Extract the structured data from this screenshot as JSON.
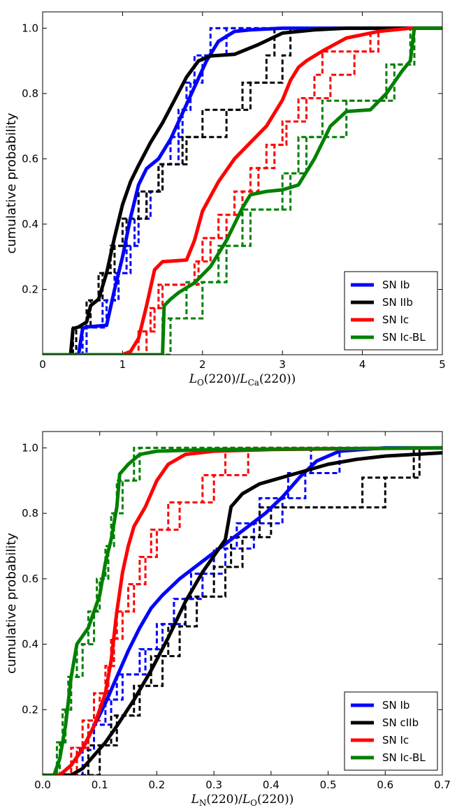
{
  "chart_data": [
    {
      "type": "line",
      "title": "",
      "xlabel": "L_O(220)/L_Ca(220))",
      "ylabel": "cumulative probability",
      "xlim": [
        0,
        5
      ],
      "ylim": [
        0,
        1.05
      ],
      "xticks": [
        0,
        1,
        2,
        3,
        4,
        5
      ],
      "xtick_labels": [
        "0",
        "1",
        "2",
        "3",
        "4",
        "5"
      ],
      "yticks": [
        0.2,
        0.4,
        0.6,
        0.8,
        1.0
      ],
      "ytick_labels": [
        "0.2",
        "0.4",
        "0.6",
        "0.8",
        "1.0"
      ],
      "legend_loc": "lower-right",
      "series": [
        {
          "name": "SN Ib",
          "color": "#0000ff",
          "smooth": [
            [
              0,
              0
            ],
            [
              0.45,
              0
            ],
            [
              0.5,
              0.08
            ],
            [
              0.55,
              0.085
            ],
            [
              0.8,
              0.09
            ],
            [
              0.9,
              0.2
            ],
            [
              1.0,
              0.3
            ],
            [
              1.1,
              0.42
            ],
            [
              1.2,
              0.52
            ],
            [
              1.3,
              0.57
            ],
            [
              1.45,
              0.6
            ],
            [
              1.6,
              0.66
            ],
            [
              1.75,
              0.74
            ],
            [
              1.9,
              0.82
            ],
            [
              2.05,
              0.9
            ],
            [
              2.2,
              0.96
            ],
            [
              2.4,
              0.99
            ],
            [
              2.6,
              0.995
            ],
            [
              3,
              1.0
            ],
            [
              5,
              1.0
            ]
          ],
          "step_x": [
            0.5,
            0.8,
            0.9,
            1.1,
            1.2,
            1.3,
            1.5,
            1.6,
            1.7,
            1.8,
            1.9,
            2.1
          ],
          "step_x2": [
            0.55,
            0.75,
            0.95,
            1.05,
            1.15,
            1.35,
            1.45,
            1.7,
            1.75,
            1.85,
            2.0,
            2.3
          ]
        },
        {
          "name": "SN IIb",
          "color": "#000000",
          "smooth": [
            [
              0,
              0
            ],
            [
              0.35,
              0
            ],
            [
              0.38,
              0.08
            ],
            [
              0.45,
              0.085
            ],
            [
              0.55,
              0.1
            ],
            [
              0.6,
              0.15
            ],
            [
              0.7,
              0.17
            ],
            [
              0.8,
              0.25
            ],
            [
              0.9,
              0.36
            ],
            [
              1.0,
              0.46
            ],
            [
              1.1,
              0.53
            ],
            [
              1.2,
              0.58
            ],
            [
              1.35,
              0.65
            ],
            [
              1.5,
              0.71
            ],
            [
              1.65,
              0.78
            ],
            [
              1.8,
              0.85
            ],
            [
              1.95,
              0.9
            ],
            [
              2.1,
              0.915
            ],
            [
              2.4,
              0.92
            ],
            [
              2.7,
              0.95
            ],
            [
              3.0,
              0.985
            ],
            [
              3.4,
              0.995
            ],
            [
              3.8,
              1.0
            ],
            [
              5,
              1.0
            ]
          ],
          "step_x": [
            0.38,
            0.55,
            0.75,
            0.9,
            1.0,
            1.3,
            1.45,
            1.8,
            2.3,
            2.5,
            3.0,
            3.1
          ],
          "step_x2": [
            0.42,
            0.6,
            0.7,
            0.85,
            1.05,
            1.2,
            1.5,
            1.75,
            2.0,
            2.6,
            2.8,
            2.9
          ]
        },
        {
          "name": "SN Ic",
          "color": "#ff0000",
          "smooth": [
            [
              0,
              0
            ],
            [
              1.0,
              0
            ],
            [
              1.1,
              0.01
            ],
            [
              1.2,
              0.05
            ],
            [
              1.3,
              0.15
            ],
            [
              1.4,
              0.26
            ],
            [
              1.5,
              0.285
            ],
            [
              1.8,
              0.29
            ],
            [
              1.9,
              0.35
            ],
            [
              2.0,
              0.44
            ],
            [
              2.2,
              0.53
            ],
            [
              2.4,
              0.6
            ],
            [
              2.6,
              0.65
            ],
            [
              2.8,
              0.7
            ],
            [
              3.0,
              0.78
            ],
            [
              3.1,
              0.84
            ],
            [
              3.2,
              0.88
            ],
            [
              3.3,
              0.9
            ],
            [
              3.5,
              0.93
            ],
            [
              3.8,
              0.97
            ],
            [
              4.2,
              0.99
            ],
            [
              4.6,
              1.0
            ],
            [
              5,
              1.0
            ]
          ],
          "step_x": [
            1.3,
            1.4,
            1.5,
            1.9,
            2.0,
            2.2,
            2.4,
            2.6,
            2.8,
            3.0,
            3.2,
            3.4,
            3.5,
            4.2
          ],
          "step_x2": [
            1.2,
            1.35,
            1.45,
            1.95,
            2.1,
            2.3,
            2.5,
            2.7,
            2.9,
            3.05,
            3.3,
            3.6,
            3.9,
            4.1
          ]
        },
        {
          "name": "SN Ic-BL",
          "color": "#008000",
          "smooth": [
            [
              0,
              0
            ],
            [
              1.5,
              0
            ],
            [
              1.52,
              0.15
            ],
            [
              1.6,
              0.17
            ],
            [
              1.7,
              0.19
            ],
            [
              1.9,
              0.22
            ],
            [
              2.1,
              0.27
            ],
            [
              2.3,
              0.35
            ],
            [
              2.5,
              0.45
            ],
            [
              2.6,
              0.49
            ],
            [
              2.8,
              0.5
            ],
            [
              3.0,
              0.505
            ],
            [
              3.2,
              0.52
            ],
            [
              3.4,
              0.6
            ],
            [
              3.6,
              0.7
            ],
            [
              3.8,
              0.745
            ],
            [
              4.1,
              0.75
            ],
            [
              4.3,
              0.8
            ],
            [
              4.5,
              0.87
            ],
            [
              4.6,
              0.9
            ],
            [
              4.65,
              1.0
            ],
            [
              5,
              1.0
            ]
          ],
          "step_x": [
            1.5,
            2.0,
            2.3,
            2.5,
            3.1,
            3.3,
            3.5,
            4.4,
            4.6
          ],
          "step_x2": [
            1.6,
            1.8,
            2.2,
            2.6,
            3.0,
            3.2,
            3.8,
            4.3,
            4.65
          ]
        }
      ]
    },
    {
      "type": "line",
      "title": "",
      "xlabel": "L_N(220)/L_O(220))",
      "ylabel": "cumulative probability",
      "xlim": [
        0,
        0.7
      ],
      "ylim": [
        0,
        1.05
      ],
      "xticks": [
        0.0,
        0.1,
        0.2,
        0.3,
        0.4,
        0.5,
        0.6,
        0.7
      ],
      "xtick_labels": [
        "0.0",
        "0.1",
        "0.2",
        "0.3",
        "0.4",
        "0.5",
        "0.6",
        "0.7"
      ],
      "yticks": [
        0.2,
        0.4,
        0.6,
        0.8,
        1.0
      ],
      "ytick_labels": [
        "0.2",
        "0.4",
        "0.6",
        "0.8",
        "1.0"
      ],
      "legend_loc": "lower-right",
      "series": [
        {
          "name": "SN Ib",
          "color": "#0000ff",
          "smooth": [
            [
              0,
              0
            ],
            [
              0.03,
              0
            ],
            [
              0.05,
              0.03
            ],
            [
              0.07,
              0.08
            ],
            [
              0.09,
              0.15
            ],
            [
              0.11,
              0.22
            ],
            [
              0.13,
              0.3
            ],
            [
              0.15,
              0.38
            ],
            [
              0.17,
              0.45
            ],
            [
              0.19,
              0.51
            ],
            [
              0.21,
              0.55
            ],
            [
              0.24,
              0.6
            ],
            [
              0.27,
              0.64
            ],
            [
              0.3,
              0.68
            ],
            [
              0.33,
              0.72
            ],
            [
              0.36,
              0.76
            ],
            [
              0.39,
              0.8
            ],
            [
              0.42,
              0.85
            ],
            [
              0.45,
              0.91
            ],
            [
              0.48,
              0.96
            ],
            [
              0.52,
              0.99
            ],
            [
              0.6,
              1.0
            ],
            [
              0.7,
              1.0
            ]
          ],
          "step_x": [
            0.07,
            0.09,
            0.11,
            0.14,
            0.17,
            0.2,
            0.23,
            0.26,
            0.3,
            0.34,
            0.38,
            0.43,
            0.47
          ],
          "step_x2": [
            0.06,
            0.08,
            0.12,
            0.13,
            0.18,
            0.21,
            0.25,
            0.28,
            0.32,
            0.37,
            0.42,
            0.46,
            0.52
          ]
        },
        {
          "name": "SN cIIb",
          "color": "#000000",
          "smooth": [
            [
              0,
              0
            ],
            [
              0.05,
              0
            ],
            [
              0.07,
              0.02
            ],
            [
              0.09,
              0.06
            ],
            [
              0.11,
              0.1
            ],
            [
              0.13,
              0.15
            ],
            [
              0.16,
              0.23
            ],
            [
              0.19,
              0.32
            ],
            [
              0.22,
              0.42
            ],
            [
              0.25,
              0.53
            ],
            [
              0.28,
              0.62
            ],
            [
              0.3,
              0.67
            ],
            [
              0.32,
              0.72
            ],
            [
              0.33,
              0.82
            ],
            [
              0.35,
              0.86
            ],
            [
              0.38,
              0.89
            ],
            [
              0.42,
              0.91
            ],
            [
              0.46,
              0.93
            ],
            [
              0.5,
              0.95
            ],
            [
              0.55,
              0.965
            ],
            [
              0.6,
              0.975
            ],
            [
              0.7,
              0.985
            ]
          ],
          "step_x": [
            0.1,
            0.13,
            0.16,
            0.19,
            0.22,
            0.25,
            0.3,
            0.33,
            0.38,
            0.56,
            0.66
          ],
          "step_x2": [
            0.08,
            0.12,
            0.17,
            0.21,
            0.24,
            0.27,
            0.32,
            0.35,
            0.4,
            0.6,
            0.65
          ]
        },
        {
          "name": "SN Ic",
          "color": "#ff0000",
          "smooth": [
            [
              0,
              0
            ],
            [
              0.03,
              0
            ],
            [
              0.05,
              0.03
            ],
            [
              0.07,
              0.08
            ],
            [
              0.09,
              0.15
            ],
            [
              0.11,
              0.25
            ],
            [
              0.12,
              0.35
            ],
            [
              0.13,
              0.5
            ],
            [
              0.14,
              0.62
            ],
            [
              0.15,
              0.7
            ],
            [
              0.16,
              0.76
            ],
            [
              0.18,
              0.82
            ],
            [
              0.2,
              0.9
            ],
            [
              0.22,
              0.95
            ],
            [
              0.25,
              0.98
            ],
            [
              0.3,
              0.99
            ],
            [
              0.4,
              0.995
            ],
            [
              0.7,
              1.0
            ]
          ],
          "step_x": [
            0.05,
            0.07,
            0.09,
            0.11,
            0.12,
            0.13,
            0.15,
            0.17,
            0.19,
            0.22,
            0.28,
            0.32
          ],
          "step_x2": [
            0.06,
            0.08,
            0.1,
            0.115,
            0.125,
            0.14,
            0.16,
            0.18,
            0.2,
            0.24,
            0.3,
            0.36
          ]
        },
        {
          "name": "SN Ic-BL",
          "color": "#008000",
          "smooth": [
            [
              0,
              0
            ],
            [
              0.02,
              0
            ],
            [
              0.03,
              0.05
            ],
            [
              0.04,
              0.15
            ],
            [
              0.05,
              0.3
            ],
            [
              0.06,
              0.4
            ],
            [
              0.08,
              0.45
            ],
            [
              0.1,
              0.55
            ],
            [
              0.11,
              0.65
            ],
            [
              0.12,
              0.72
            ],
            [
              0.13,
              0.82
            ],
            [
              0.135,
              0.92
            ],
            [
              0.15,
              0.95
            ],
            [
              0.17,
              0.98
            ],
            [
              0.2,
              0.99
            ],
            [
              0.3,
              0.995
            ],
            [
              0.7,
              1.0
            ]
          ],
          "step_x": [
            0.03,
            0.04,
            0.05,
            0.06,
            0.08,
            0.1,
            0.11,
            0.12,
            0.13,
            0.16
          ],
          "step_x2": [
            0.025,
            0.035,
            0.045,
            0.07,
            0.09,
            0.095,
            0.115,
            0.125,
            0.14,
            0.17
          ]
        }
      ]
    }
  ],
  "panels": [
    {
      "ylabel": "cumulative probability",
      "xlabel_main": "L",
      "xlabel_sub": "O",
      "xlabel_mid": "(220)/",
      "xlabel_main2": "L",
      "xlabel_sub2": "Ca",
      "xlabel_tail": "(220))",
      "legend": [
        "SN Ib",
        "SN IIb",
        "SN Ic",
        "SN Ic-BL"
      ]
    },
    {
      "ylabel": "cumulative probability",
      "xlabel_main": "L",
      "xlabel_sub": "N",
      "xlabel_mid": "(220)/",
      "xlabel_main2": "L",
      "xlabel_sub2": "O",
      "xlabel_tail": "(220))",
      "legend": [
        "SN Ib",
        "SN cIIb",
        "SN Ic",
        "SN Ic-BL"
      ]
    }
  ]
}
